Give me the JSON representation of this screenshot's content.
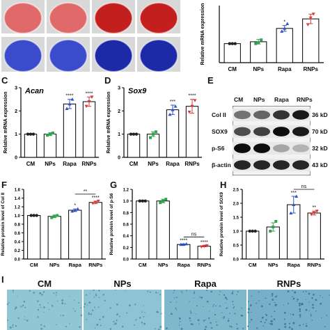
{
  "panels": {
    "C": "C",
    "D": "D",
    "E": "E",
    "F": "F",
    "G": "G",
    "H": "H",
    "I": "I"
  },
  "colors": {
    "CM": "#222222",
    "NPs": "#2ea44f",
    "Rapa": "#2f54c6",
    "RNPs": "#d93a3a",
    "alizarin": "#c42a2a",
    "blue_stain": "#2233b0",
    "alcian": "#7fbcc8"
  },
  "chart_data": [
    {
      "id": "top",
      "type": "bar",
      "categories": [
        "CM",
        "NPs",
        "Rapa",
        "RNPs"
      ],
      "values": [
        1.0,
        1.1,
        1.8,
        2.3
      ],
      "errors": [
        0.02,
        0.12,
        0.15,
        0.25
      ],
      "points": [
        [
          1.0,
          1.0,
          1.0
        ],
        [
          1.0,
          1.05,
          1.2
        ],
        [
          1.65,
          1.8,
          2.05
        ],
        [
          2.0,
          2.35,
          2.55
        ]
      ],
      "title": "",
      "ylabel": "Relative mRNA expression",
      "ylim": [
        0,
        3.0
      ],
      "yticks": [],
      "sig": [
        "",
        "",
        "*",
        ""
      ]
    },
    {
      "id": "C",
      "type": "bar",
      "categories": [
        "CM",
        "NPs",
        "Rapa",
        "RNPs"
      ],
      "values": [
        1.0,
        1.0,
        2.3,
        2.4
      ],
      "errors": [
        0.02,
        0.06,
        0.2,
        0.2
      ],
      "points": [
        [
          1.0,
          1.0,
          1.0
        ],
        [
          0.95,
          1.0,
          1.05
        ],
        [
          2.1,
          2.3,
          2.5
        ],
        [
          2.2,
          2.4,
          2.6
        ]
      ],
      "title": "Acan",
      "ylabel": "Relative mRNA expression",
      "ylim": [
        0,
        3.0
      ],
      "yticks": [
        0,
        1,
        2,
        3
      ],
      "sig": [
        "",
        "",
        "****",
        "****"
      ]
    },
    {
      "id": "D",
      "type": "bar",
      "categories": [
        "CM",
        "NPs",
        "Rapa",
        "RNPs"
      ],
      "values": [
        1.0,
        1.0,
        2.05,
        2.2
      ],
      "errors": [
        0.02,
        0.1,
        0.2,
        0.3
      ],
      "points": [
        [
          1.0,
          1.0,
          1.0
        ],
        [
          0.85,
          1.0,
          1.1
        ],
        [
          1.85,
          2.05,
          2.2
        ],
        [
          1.95,
          2.2,
          2.45
        ]
      ],
      "title": "Sox9",
      "ylabel": "Relative mRNA expression",
      "ylim": [
        0,
        3.0
      ],
      "yticks": [
        0,
        1,
        2,
        3
      ],
      "sig": [
        "",
        "",
        "***",
        "****"
      ]
    },
    {
      "id": "F",
      "type": "bar",
      "categories": [
        "CM",
        "NPs",
        "Rapa",
        "RNPs"
      ],
      "values": [
        1.0,
        0.98,
        1.12,
        1.3
      ],
      "errors": [
        0.01,
        0.03,
        0.03,
        0.03
      ],
      "points": [
        [
          1.0,
          1.0,
          1.0
        ],
        [
          0.95,
          0.98,
          1.0
        ],
        [
          1.1,
          1.12,
          1.15
        ],
        [
          1.28,
          1.3,
          1.33
        ]
      ],
      "title": "",
      "ylabel": "Relative protein level of Col II",
      "ylim": [
        0,
        1.6
      ],
      "yticks": [
        0.0,
        0.2,
        0.4,
        0.6,
        0.8,
        1.0,
        1.2,
        1.4,
        1.6
      ],
      "sig": [
        "",
        "",
        "*",
        "****"
      ],
      "bracket": {
        "from": 2,
        "to": 3,
        "label": "**"
      }
    },
    {
      "id": "G",
      "type": "bar",
      "categories": [
        "CM",
        "NPs",
        "Rapa",
        "RNPs"
      ],
      "values": [
        1.0,
        1.0,
        0.25,
        0.22
      ],
      "errors": [
        0.01,
        0.03,
        0.01,
        0.01
      ],
      "points": [
        [
          1.0,
          1.0,
          1.0
        ],
        [
          0.97,
          1.0,
          1.03
        ],
        [
          0.25,
          0.25,
          0.26
        ],
        [
          0.21,
          0.22,
          0.23
        ]
      ],
      "title": "",
      "ylabel": "Relative protein level of p-S6",
      "ylim": [
        0,
        1.2
      ],
      "yticks": [
        0.0,
        0.2,
        0.4,
        0.6,
        0.8,
        1.0,
        1.2
      ],
      "sig": [
        "",
        "",
        "****",
        "****"
      ],
      "bracket": {
        "from": 2,
        "to": 3,
        "label": "ns"
      }
    },
    {
      "id": "H",
      "type": "bar",
      "categories": [
        "CM",
        "NPs",
        "Rapa",
        "RNPs"
      ],
      "values": [
        1.0,
        1.15,
        1.95,
        1.65
      ],
      "errors": [
        0.01,
        0.15,
        0.3,
        0.07
      ],
      "points": [
        [
          1.0,
          1.0,
          1.0
        ],
        [
          1.0,
          1.15,
          1.35
        ],
        [
          1.65,
          1.95,
          2.25
        ],
        [
          1.6,
          1.65,
          1.72
        ]
      ],
      "title": "",
      "ylabel": "Relative protein level of SOX9",
      "ylim": [
        0,
        2.5
      ],
      "yticks": [
        0.0,
        0.5,
        1.0,
        1.5,
        2.0,
        2.5
      ],
      "sig": [
        "",
        "",
        "***",
        "**"
      ],
      "bracket": {
        "from": 2,
        "to": 3,
        "label": "ns"
      }
    }
  ],
  "western_blot": {
    "headers": [
      "CM",
      "NPs",
      "Rapa",
      "RNPs"
    ],
    "rows": [
      {
        "label": "Col II",
        "kd": "36 kD",
        "bands": [
          0.55,
          0.6,
          0.8,
          0.9
        ]
      },
      {
        "label": "SOX9",
        "kd": "70 kD",
        "bands": [
          0.7,
          0.75,
          0.95,
          0.9
        ]
      },
      {
        "label": "p-S6",
        "kd": "32 kD",
        "bands": [
          0.95,
          0.95,
          0.35,
          0.3
        ]
      },
      {
        "label": "β-actin",
        "kd": "43 kD",
        "bands": [
          0.85,
          0.85,
          0.85,
          0.85
        ]
      }
    ]
  },
  "panel_I": {
    "labels": [
      "CM",
      "NPs",
      "Rapa",
      "RNPs"
    ],
    "intensity": [
      0.25,
      0.3,
      0.55,
      0.7
    ]
  }
}
